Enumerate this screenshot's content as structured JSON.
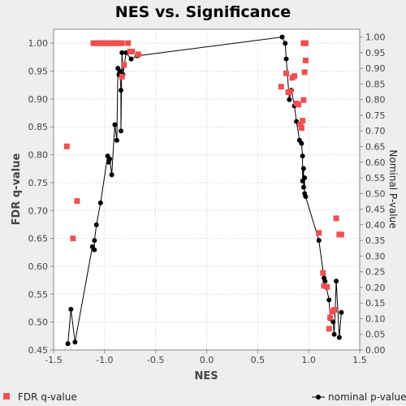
{
  "chart_data": {
    "type": "scatter",
    "title": "NES vs. Significance",
    "xlabel": "NES",
    "ylabel_left": "FDR q-value",
    "ylabel_right": "Nominal P-value",
    "xlim": [
      -1.5,
      1.5
    ],
    "ylim_left": [
      0.45,
      1.025
    ],
    "ylim_right": [
      0.0,
      1.025
    ],
    "xticks": [
      "-1.5",
      "-1.0",
      "-0.5",
      "0.0",
      "0.5",
      "1.0",
      "1.5"
    ],
    "yticks_left": [
      "0.45",
      "0.50",
      "0.55",
      "0.60",
      "0.65",
      "0.70",
      "0.75",
      "0.80",
      "0.85",
      "0.90",
      "0.95",
      "1.00"
    ],
    "yticks_right": [
      "0.00",
      "0.05",
      "0.10",
      "0.15",
      "0.20",
      "0.25",
      "0.30",
      "0.35",
      "0.40",
      "0.45",
      "0.50",
      "0.55",
      "0.60",
      "0.65",
      "0.70",
      "0.75",
      "0.80",
      "0.85",
      "0.90",
      "0.95",
      "1.00"
    ],
    "grid": true,
    "legend_position": "bottom",
    "series": [
      {
        "name": "FDR q-value",
        "axis": "left",
        "marker": "square",
        "color": "#f05050",
        "x": [
          -1.37,
          -1.31,
          -1.27,
          -1.11,
          -1.09,
          -1.07,
          -1.05,
          -1.03,
          -1.01,
          -0.99,
          -0.97,
          -0.95,
          -0.93,
          -0.91,
          -0.89,
          -0.87,
          -0.85,
          -0.83,
          -0.81,
          -0.77,
          -0.75,
          -0.73,
          -0.67,
          -0.83,
          0.73,
          0.78,
          0.8,
          0.82,
          0.84,
          0.86,
          0.88,
          0.9,
          0.92,
          0.93,
          0.94,
          0.95,
          0.96,
          0.97,
          0.95,
          0.96,
          0.97,
          1.1,
          1.14,
          1.15,
          1.18,
          1.2,
          1.21,
          1.23,
          1.25,
          1.27,
          1.3,
          1.32
        ],
        "y": [
          0.815,
          0.65,
          0.717,
          1.0,
          1.0,
          1.0,
          1.0,
          1.0,
          1.0,
          1.0,
          1.0,
          1.0,
          1.0,
          1.0,
          1.0,
          1.0,
          1.0,
          1.0,
          0.961,
          1.0,
          0.985,
          0.985,
          0.98,
          0.94,
          0.922,
          0.946,
          0.912,
          0.913,
          0.938,
          0.941,
          0.892,
          0.89,
          0.855,
          0.848,
          0.861,
          0.898,
          0.948,
          0.969,
          1.0,
          1.0,
          1.0,
          0.66,
          0.588,
          0.565,
          0.563,
          0.488,
          0.508,
          0.519,
          0.522,
          0.686,
          0.657,
          0.657
        ]
      },
      {
        "name": "nominal p-value",
        "axis": "right",
        "marker": "circle-line",
        "color": "#000000",
        "x": [
          -1.36,
          -1.33,
          -1.29,
          -1.12,
          -1.1,
          -1.1,
          -1.08,
          -1.04,
          -0.97,
          -0.96,
          -0.95,
          -0.93,
          -0.9,
          -0.88,
          -0.87,
          -0.86,
          -0.85,
          -0.84,
          -0.84,
          -0.83,
          -0.82,
          -0.79,
          -0.74,
          -0.68,
          0.74,
          0.77,
          0.78,
          0.81,
          0.83,
          0.86,
          0.88,
          0.91,
          0.93,
          0.94,
          0.94,
          0.95,
          0.95,
          0.96,
          0.96,
          0.97,
          1.1,
          1.15,
          1.16,
          1.2,
          1.21,
          1.24,
          1.25,
          1.27,
          1.3,
          1.32
        ],
        "y": [
          0.02,
          0.13,
          0.025,
          0.33,
          0.32,
          0.35,
          0.4,
          0.47,
          0.62,
          0.6,
          0.61,
          0.56,
          0.72,
          0.67,
          0.9,
          0.88,
          0.89,
          0.83,
          0.7,
          0.95,
          0.88,
          0.95,
          0.93,
          0.94,
          1.0,
          0.98,
          0.93,
          0.8,
          0.83,
          0.78,
          0.73,
          0.67,
          0.66,
          0.62,
          0.54,
          0.58,
          0.52,
          0.55,
          0.5,
          0.49,
          0.35,
          0.23,
          0.22,
          0.16,
          0.1,
          0.09,
          0.05,
          0.22,
          0.04,
          0.12
        ]
      }
    ]
  }
}
